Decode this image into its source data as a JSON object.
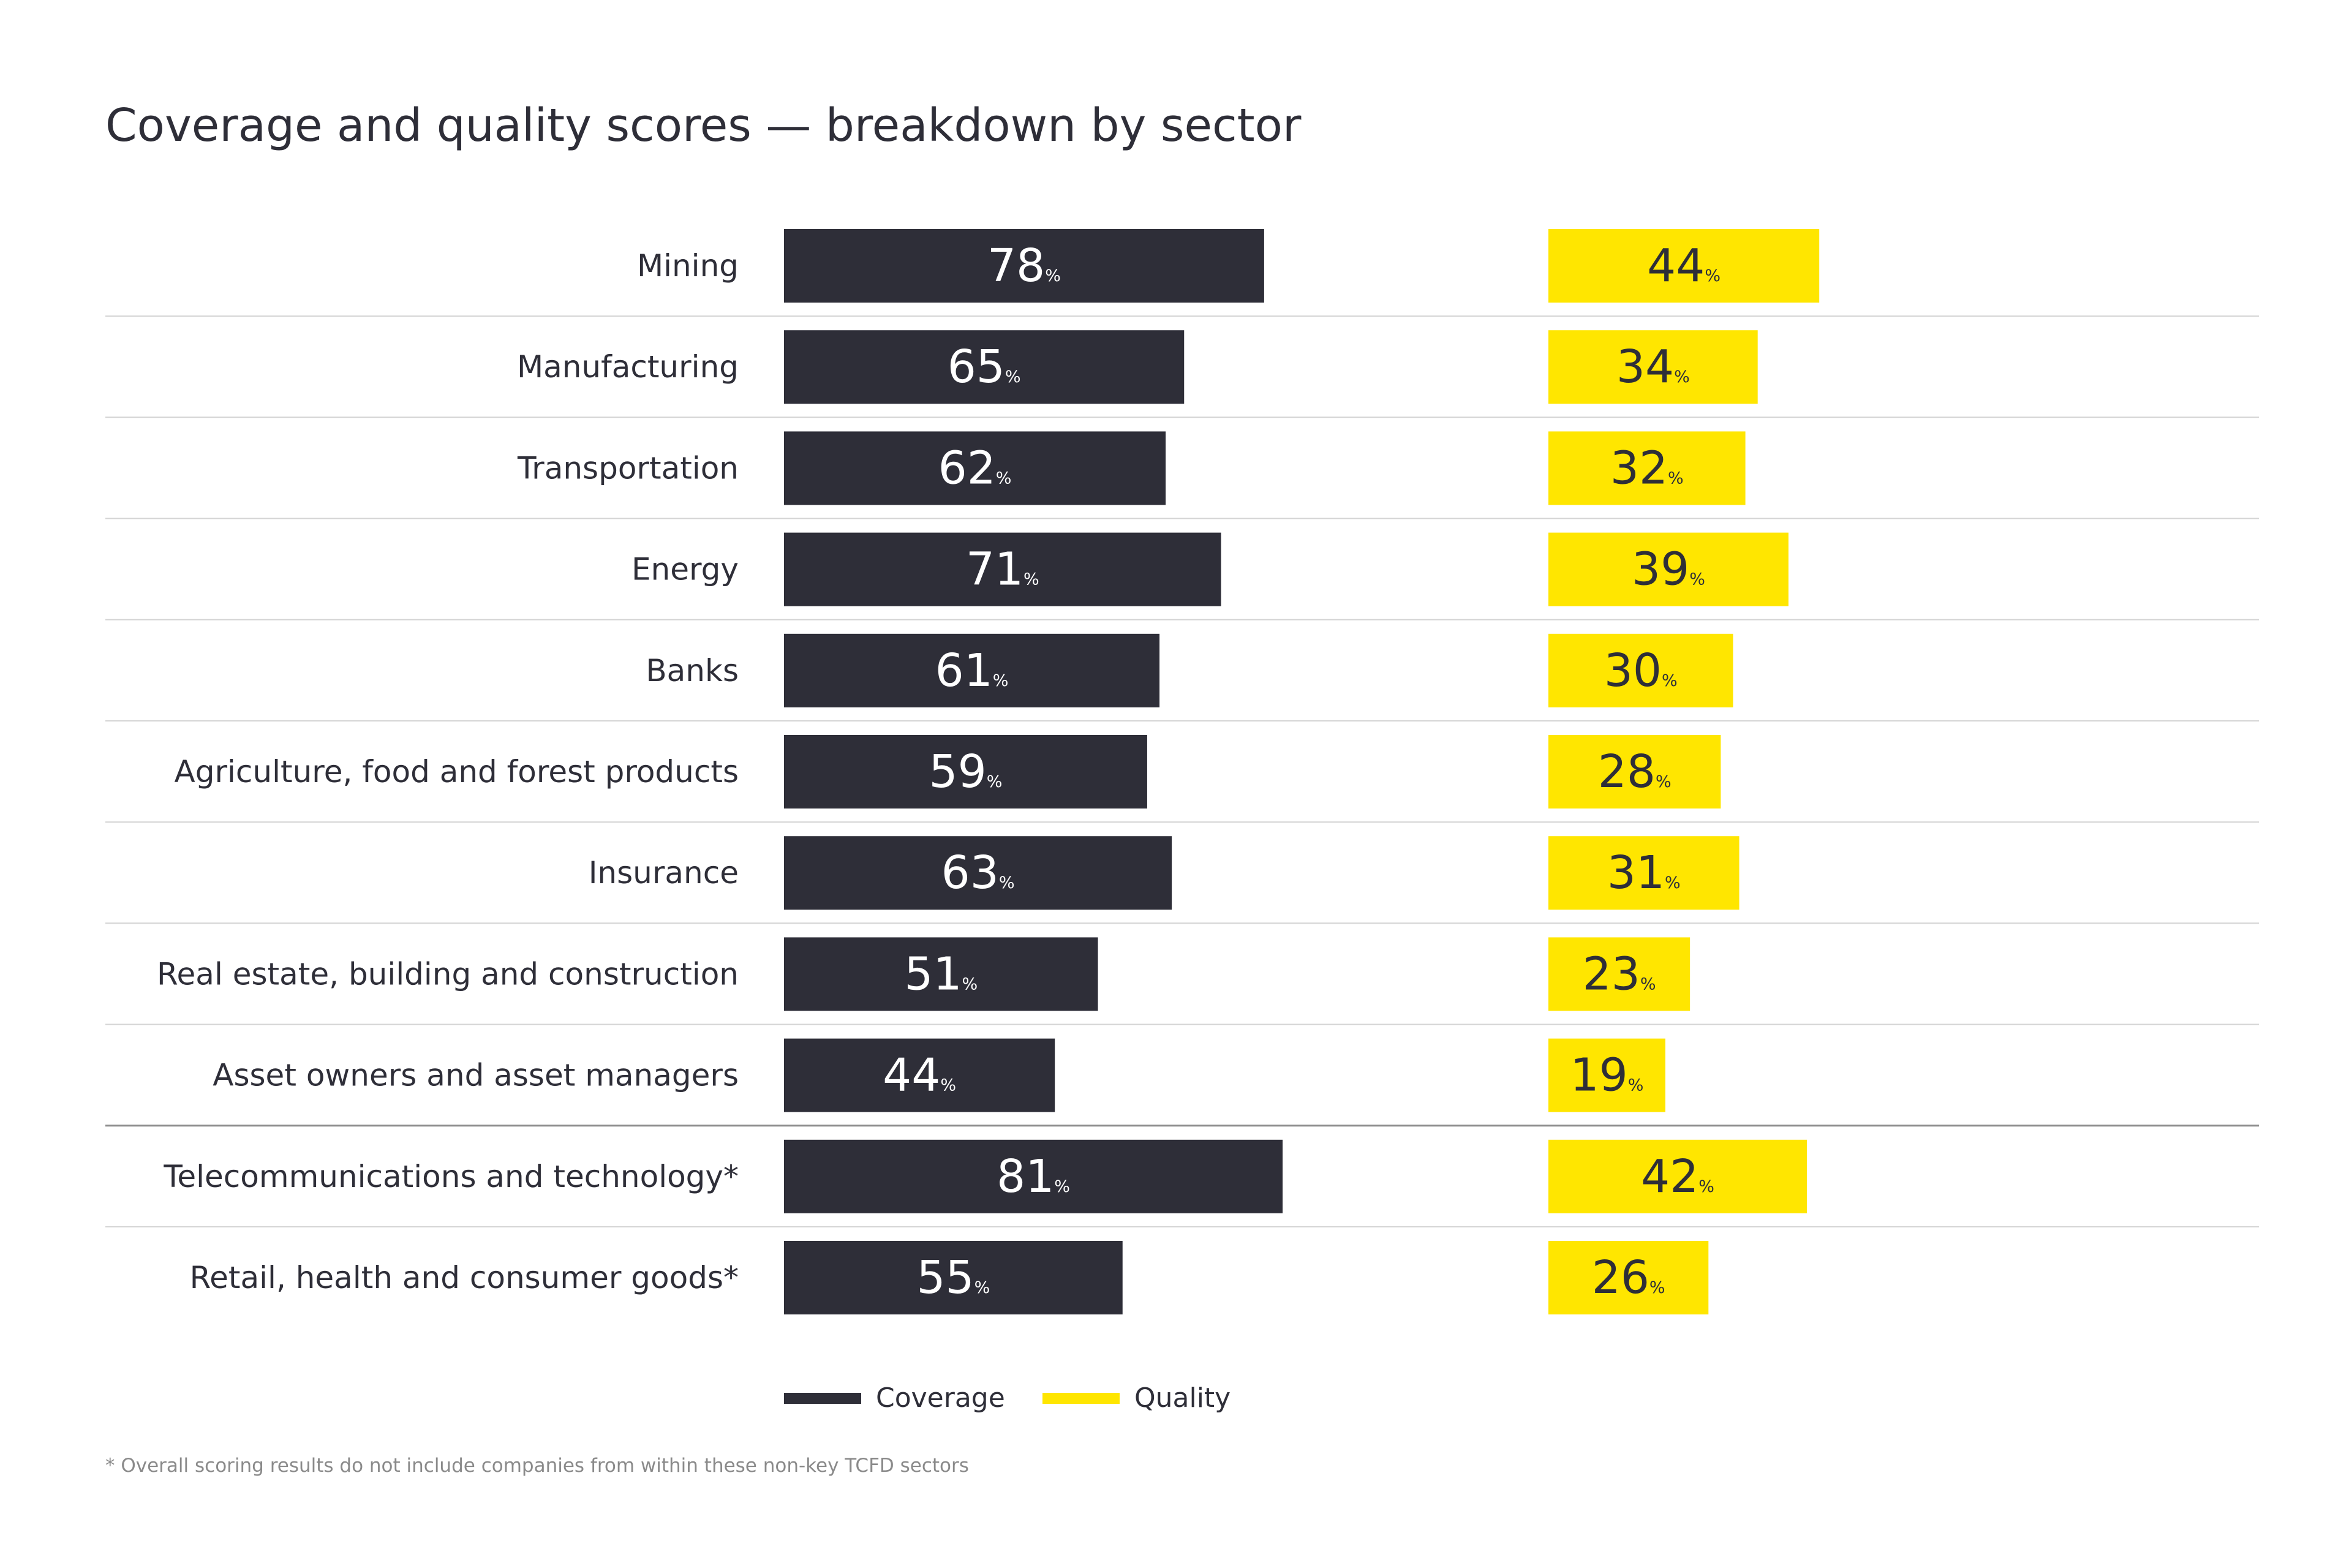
{
  "chart_data": {
    "type": "bar",
    "title": "Coverage and quality scores — breakdown by sector",
    "categories": [
      "Mining",
      "Manufacturing",
      "Transportation",
      "Energy",
      "Banks",
      "Agriculture, food and forest products",
      "Insurance",
      "Real estate, building and construction",
      "Asset owners and asset managers",
      "Telecommunications and technology*",
      "Retail, health and consumer goods*"
    ],
    "series": [
      {
        "name": "Coverage",
        "color": "#2e2e38",
        "text_color": "#ffffff",
        "values": [
          78,
          65,
          62,
          71,
          61,
          59,
          63,
          51,
          44,
          81,
          55
        ]
      },
      {
        "name": "Quality",
        "color": "#ffe600",
        "text_color": "#2e2e38",
        "values": [
          44,
          34,
          32,
          39,
          30,
          28,
          31,
          23,
          19,
          42,
          26
        ]
      }
    ],
    "value_suffix": "%",
    "legend_position": "bottom-center",
    "footnote": "* Overall scoring results do not include companies from within these non-key TCFD sectors"
  }
}
